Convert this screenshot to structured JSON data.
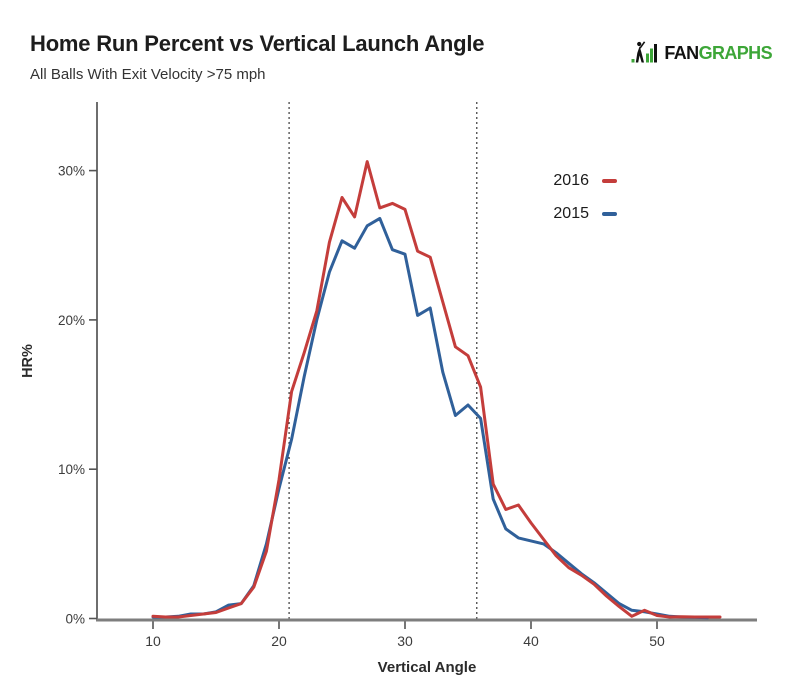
{
  "logo": {
    "brand_prefix": "FAN",
    "brand_suffix": "GRAPHS",
    "prefix_color": "#111111",
    "suffix_color": "#3DA638",
    "icon": "batter-with-bars-icon"
  },
  "chart_data": {
    "type": "line",
    "title": "Home Run Percent vs Vertical Launch Angle",
    "subtitle": "All Balls With Exit Velocity >75 mph",
    "xlabel": "Vertical Angle",
    "ylabel": "HR%",
    "xlim": [
      7.5,
      58
    ],
    "ylim": [
      0,
      34.5
    ],
    "grid": false,
    "legend_position": "inside-top-right",
    "x_ticks": [
      {
        "value": 10,
        "label": "10"
      },
      {
        "value": 20,
        "label": "20"
      },
      {
        "value": 30,
        "label": "30"
      },
      {
        "value": 40,
        "label": "40"
      },
      {
        "value": 50,
        "label": "50"
      }
    ],
    "y_ticks": [
      {
        "value": 0,
        "label": "0%"
      },
      {
        "value": 10,
        "label": "10%"
      },
      {
        "value": 20,
        "label": "20%"
      },
      {
        "value": 30,
        "label": "30%"
      }
    ],
    "reference_lines_x": [
      20.8,
      35.7
    ],
    "reference_line_color": "#111111",
    "x_axis_color": "#7e7e7e",
    "y_axis_color": "#4a4a4a",
    "tick_label_color": "#3c3c3c",
    "series": [
      {
        "name": "2016",
        "color": "#C43D3B",
        "x": [
          10,
          11,
          12,
          13,
          14,
          15,
          16,
          17,
          18,
          19,
          20,
          21,
          22,
          23,
          24,
          25,
          26,
          27,
          28,
          29,
          30,
          31,
          32,
          33,
          34,
          35,
          36,
          37,
          38,
          39,
          40,
          41,
          42,
          43,
          44,
          45,
          46,
          47,
          48,
          49,
          50,
          51,
          52,
          53,
          54,
          55
        ],
        "y": [
          0.15,
          0.1,
          0.1,
          0.2,
          0.3,
          0.4,
          0.7,
          1.0,
          2.1,
          4.5,
          9.3,
          15.2,
          17.8,
          20.6,
          25.2,
          28.2,
          26.9,
          30.6,
          27.5,
          27.8,
          27.4,
          24.6,
          24.2,
          21.2,
          18.2,
          17.6,
          15.5,
          9.0,
          7.3,
          7.6,
          6.4,
          5.3,
          4.2,
          3.4,
          2.9,
          2.3,
          1.5,
          0.8,
          0.15,
          0.55,
          0.2,
          0.1,
          0.12,
          0.1,
          0.1,
          0.1
        ]
      },
      {
        "name": "2015",
        "color": "#30609A",
        "x": [
          10,
          11,
          12,
          13,
          14,
          15,
          16,
          17,
          18,
          19,
          20,
          21,
          22,
          23,
          24,
          25,
          26,
          27,
          28,
          29,
          30,
          31,
          32,
          33,
          34,
          35,
          36,
          37,
          38,
          39,
          40,
          41,
          42,
          43,
          44,
          45,
          46,
          47,
          48,
          49,
          50,
          51,
          52,
          53,
          54
        ],
        "y": [
          0.1,
          0.1,
          0.15,
          0.3,
          0.3,
          0.45,
          0.9,
          1.0,
          2.2,
          5.0,
          8.7,
          12.0,
          16.2,
          20.0,
          23.2,
          25.3,
          24.8,
          26.3,
          26.8,
          24.7,
          24.4,
          20.3,
          20.8,
          16.5,
          13.6,
          14.3,
          13.4,
          8.0,
          6.0,
          5.4,
          5.2,
          5.0,
          4.4,
          3.7,
          3.0,
          2.4,
          1.7,
          1.0,
          0.55,
          0.45,
          0.3,
          0.15,
          0.1,
          0.08,
          0.05
        ]
      }
    ]
  }
}
